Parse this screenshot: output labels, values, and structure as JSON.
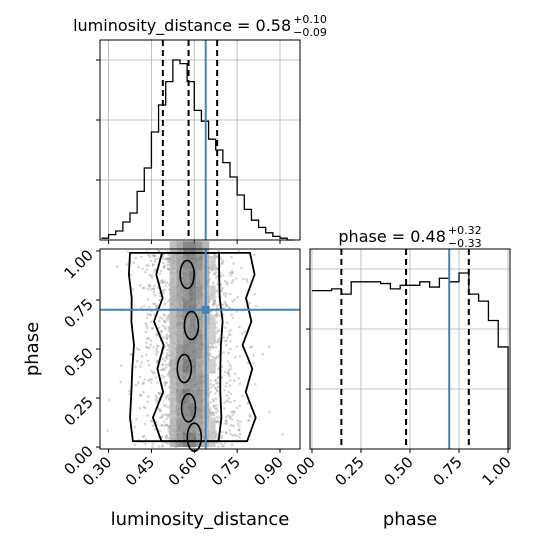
{
  "chart_data": {
    "type": "corner",
    "parameters": [
      "luminosity_distance",
      "phase"
    ],
    "axis_labels": {
      "x_left": "luminosity_distance",
      "x_right": "phase",
      "y_left": "phase"
    },
    "titles": [
      {
        "param": "luminosity_distance",
        "name": "luminosity_distance",
        "median": "0.58",
        "plus": "+0.10",
        "minus": "−0.09"
      },
      {
        "param": "phase",
        "name": "phase",
        "median": "0.48",
        "plus": "+0.32",
        "minus": "−0.33"
      }
    ],
    "luminosity_distance": {
      "xlim": [
        0.27,
        0.97
      ],
      "ticks": [
        0.3,
        0.45,
        0.6,
        0.75,
        0.9
      ],
      "tick_labels": [
        "0.30",
        "0.45",
        "0.60",
        "0.75",
        "0.90"
      ],
      "quantiles": [
        0.49,
        0.58,
        0.68
      ],
      "truth": 0.64,
      "hist_edges": [
        0.275,
        0.3,
        0.325,
        0.35,
        0.375,
        0.4,
        0.425,
        0.45,
        0.475,
        0.5,
        0.525,
        0.55,
        0.575,
        0.6,
        0.625,
        0.65,
        0.675,
        0.7,
        0.725,
        0.75,
        0.775,
        0.8,
        0.825,
        0.85,
        0.875,
        0.9,
        0.925,
        0.95
      ],
      "hist_counts": [
        1,
        3,
        5,
        10,
        15,
        27,
        40,
        60,
        75,
        88,
        100,
        98,
        88,
        72,
        66,
        56,
        50,
        43,
        35,
        25,
        17,
        11,
        7,
        4,
        2,
        1,
        0
      ]
    },
    "phase": {
      "xlim": [
        -0.01,
        1.01
      ],
      "ticks": [
        0.0,
        0.25,
        0.5,
        0.75,
        1.0
      ],
      "tick_labels": [
        "0.00",
        "0.25",
        "0.50",
        "0.75",
        "1.00"
      ],
      "quantiles": [
        0.15,
        0.48,
        0.8
      ],
      "truth": 0.7,
      "hist_edges": [
        0.0,
        0.05,
        0.1,
        0.15,
        0.2,
        0.25,
        0.3,
        0.35,
        0.4,
        0.45,
        0.5,
        0.55,
        0.6,
        0.65,
        0.7,
        0.75,
        0.8,
        0.85,
        0.9,
        0.95,
        1.0
      ],
      "hist_counts": [
        90,
        90,
        91,
        88,
        95,
        95,
        95,
        94,
        91,
        93,
        93,
        95,
        92,
        97,
        95,
        100,
        88,
        84,
        73,
        58
      ]
    },
    "scatter_2d": {
      "x_param": "luminosity_distance",
      "y_param": "phase",
      "xlim": [
        0.27,
        0.97
      ],
      "ylim": [
        -0.01,
        1.01
      ],
      "y_ticks": [
        0.0,
        0.25,
        0.5,
        0.75,
        1.0
      ],
      "y_tick_labels": [
        "0.00",
        "0.25",
        "0.50",
        "0.75",
        "1.00"
      ],
      "truth": {
        "x": 0.64,
        "y": 0.7
      },
      "contour_outer_halfwidth": [
        0.2,
        0.22,
        0.2,
        0.21,
        0.19,
        0.21,
        0.2,
        0.22,
        0.21
      ],
      "contour_mid_halfwidth": [
        0.1,
        0.12,
        0.1,
        0.11,
        0.1,
        0.12,
        0.1,
        0.11,
        0.1
      ],
      "contour_y": [
        0.03,
        0.15,
        0.28,
        0.4,
        0.52,
        0.64,
        0.76,
        0.88,
        0.99
      ]
    }
  }
}
